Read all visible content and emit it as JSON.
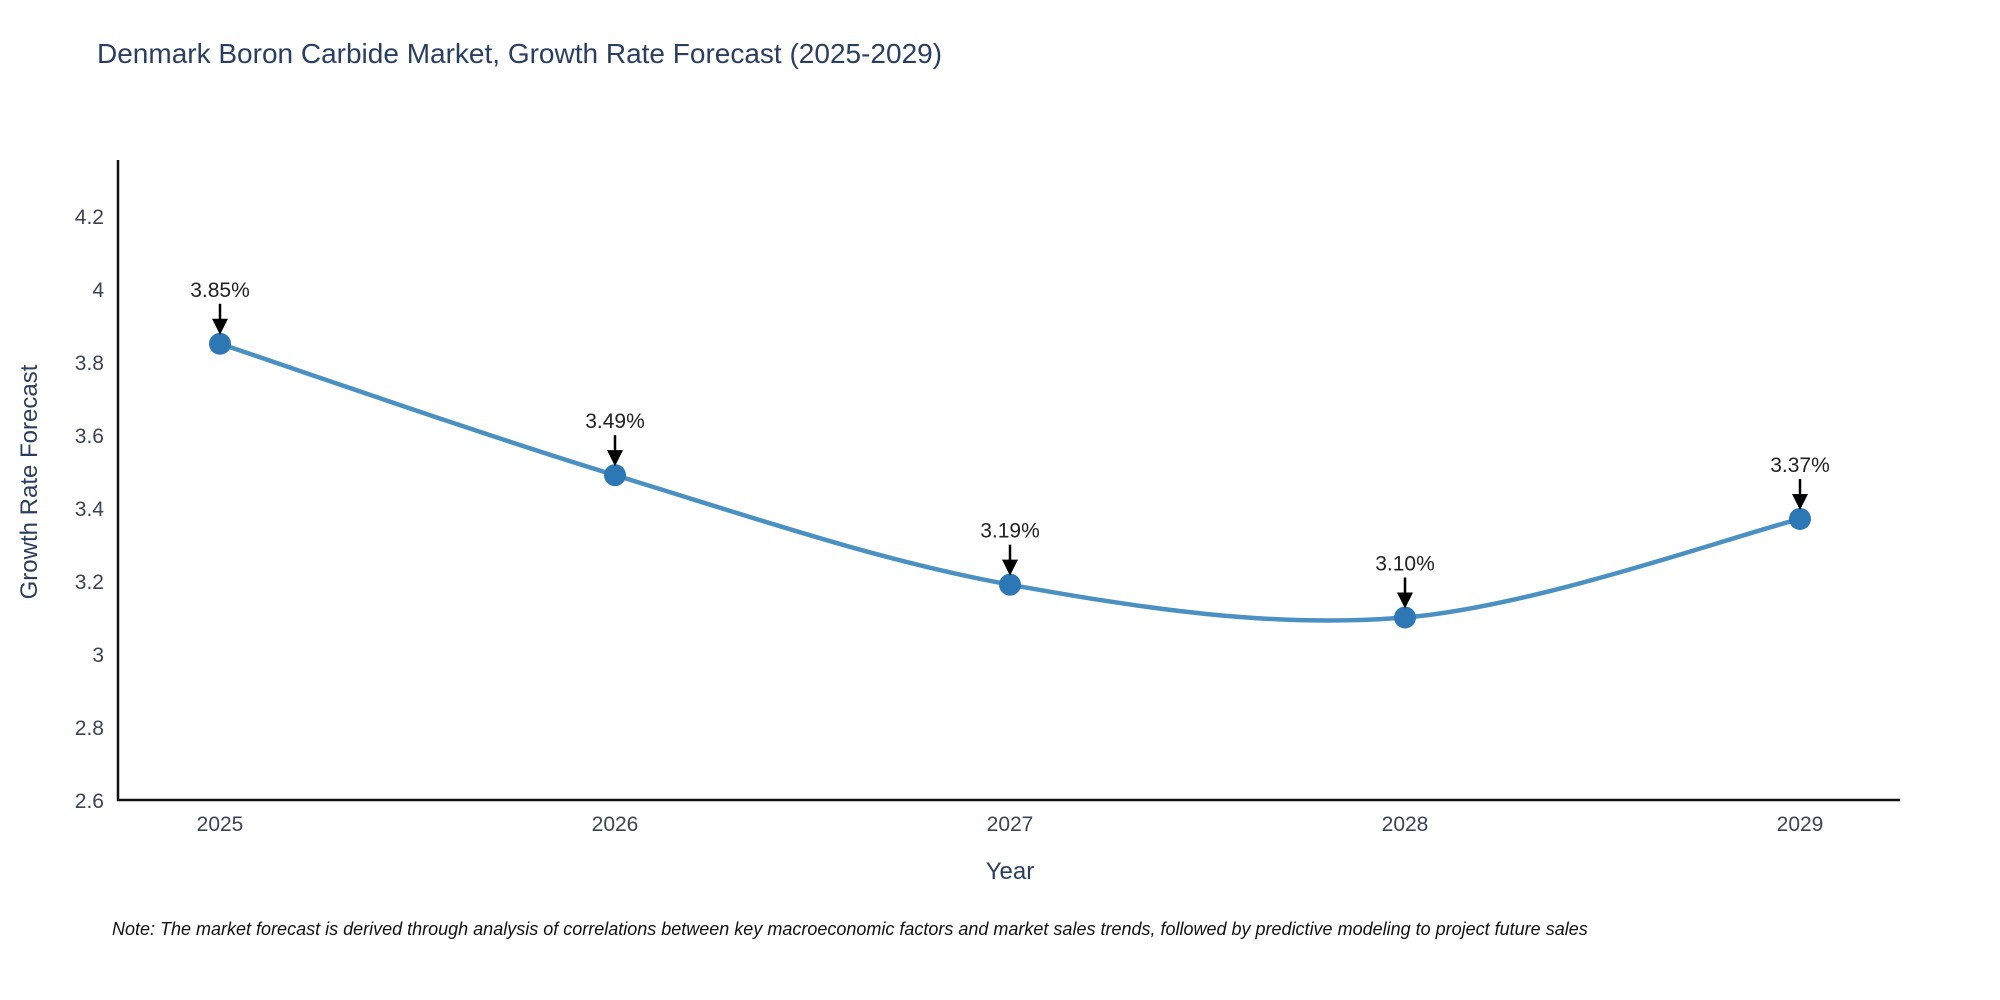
{
  "title": "Denmark Boron Carbide Market, Growth Rate Forecast (2025-2029)",
  "note": "Note: The market forecast is derived through analysis of correlations between key macroeconomic factors and market sales trends, followed by predictive modeling to project future sales",
  "chart_data": {
    "type": "line",
    "line_shape": "spline",
    "title": "Denmark Boron Carbide Market, Growth Rate Forecast (2025-2029)",
    "xlabel": "Year",
    "ylabel": "Growth Rate Forecast",
    "categories": [
      "2025",
      "2026",
      "2027",
      "2028",
      "2029"
    ],
    "values": [
      3.85,
      3.49,
      3.19,
      3.1,
      3.37
    ],
    "point_labels": [
      "3.85%",
      "3.49%",
      "3.19%",
      "3.10%",
      "3.37%"
    ],
    "yticks": [
      2.6,
      2.8,
      3.0,
      3.2,
      3.4,
      3.6,
      3.8,
      4.0,
      4.2
    ],
    "ylim": [
      2.6,
      4.35
    ],
    "grid": false,
    "legend_position": "none",
    "annotations_style": "label-with-down-arrow",
    "colors": {
      "line": "#4a90c2",
      "marker": "#2e77b5",
      "axis": "#111111",
      "arrow": "#000000",
      "title_text": "#2a3f5f",
      "tick_text": "#3b4457",
      "annotation_text": "#222222"
    }
  }
}
